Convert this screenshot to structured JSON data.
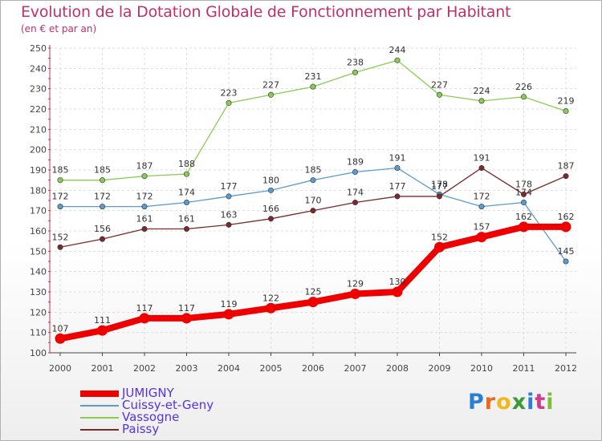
{
  "title": "Evolution de la Dotation Globale de Fonctionnement par Habitant",
  "subtitle": "(en € et par an)",
  "logo": {
    "letters": [
      "P",
      "r",
      "o",
      "x",
      "i",
      "t",
      "i"
    ],
    "colors": [
      "#2a7fd4",
      "#e86a1c",
      "#f0b81c",
      "#3a9a3a",
      "#2a7fd4",
      "#d23b8c",
      "#7bbf3a"
    ]
  },
  "chart_data": {
    "type": "line",
    "title": "Evolution de la Dotation Globale de Fonctionnement par Habitant",
    "subtitle": "(en € et par an)",
    "xlabel": "",
    "ylabel": "",
    "x": [
      "2000",
      "2001",
      "2002",
      "2003",
      "2004",
      "2005",
      "2006",
      "2007",
      "2008",
      "2009",
      "2010",
      "2011",
      "2012"
    ],
    "ylim": [
      100,
      250
    ],
    "yticks": [
      "100",
      "110",
      "120",
      "130",
      "140",
      "150",
      "160",
      "170",
      "180",
      "190",
      "200",
      "210",
      "220",
      "230",
      "240",
      "250"
    ],
    "grid": true,
    "legend": "bottom-left",
    "series": [
      {
        "name": "Vassogne",
        "color": "#88cc55",
        "emphasis": false,
        "values": [
          185,
          185,
          187,
          188,
          223,
          227,
          231,
          238,
          244,
          227,
          224,
          226,
          219
        ]
      },
      {
        "name": "Cuissy-et-Geny",
        "color": "#5a9bd0",
        "emphasis": false,
        "values": [
          172,
          172,
          172,
          174,
          177,
          180,
          185,
          189,
          191,
          178,
          172,
          174,
          145
        ]
      },
      {
        "name": "Paissy",
        "color": "#7a2a2a",
        "emphasis": false,
        "values": [
          152,
          156,
          161,
          161,
          163,
          166,
          170,
          174,
          177,
          177,
          191,
          178,
          187
        ]
      },
      {
        "name": "JUMIGNY",
        "color": "#ee0000",
        "emphasis": true,
        "values": [
          107,
          111,
          117,
          117,
          119,
          122,
          125,
          129,
          130,
          152,
          157,
          162,
          162
        ]
      }
    ],
    "legend_order": [
      "JUMIGNY",
      "Cuissy-et-Geny",
      "Vassogne",
      "Paissy"
    ],
    "legend_colors": [
      "#ee0000",
      "#5a9bd0",
      "#88cc55",
      "#7a2a2a"
    ],
    "legend_text_colors": [
      "#5533dd",
      "#5533dd",
      "#5533dd",
      "#5533dd"
    ]
  }
}
